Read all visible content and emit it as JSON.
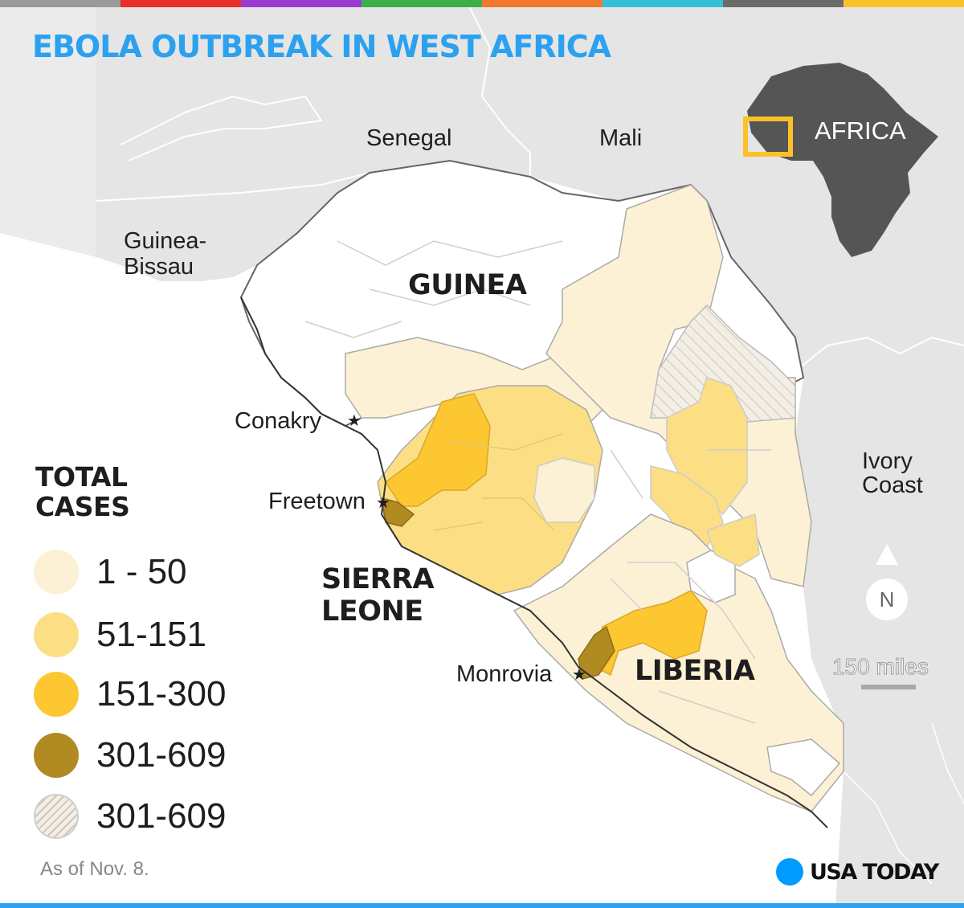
{
  "title": "EBOLA OUTBREAK IN WEST AFRICA",
  "stripe_colors": [
    "#9a9a9a",
    "#e8302a",
    "#9b3bd1",
    "#3fae49",
    "#f07830",
    "#36c0d8",
    "#6b6b6b",
    "#fbc12a"
  ],
  "labels": {
    "senegal": "Senegal",
    "mali": "Mali",
    "guinea_bissau_1": "Guinea-",
    "guinea_bissau_2": "Bissau",
    "ivory_coast_1": "Ivory",
    "ivory_coast_2": "Coast",
    "conakry": "Conakry",
    "freetown": "Freetown",
    "monrovia": "Monrovia",
    "africa": "AFRICA"
  },
  "countries": {
    "guinea": "GUINEA",
    "sierra_leone_1": "SIERRA",
    "sierra_leone_2": "LEONE",
    "liberia": "LIBERIA"
  },
  "legend": {
    "title_1": "TOTAL",
    "title_2": "CASES",
    "items": [
      {
        "label": "1 - 50",
        "color": "#fcf1d4"
      },
      {
        "label": "51-151",
        "color": "#fcde85"
      },
      {
        "label": "151-300",
        "color": "#fdc731"
      },
      {
        "label": "301-609",
        "color": "#b18a22"
      },
      {
        "label": "301-609",
        "color": "hatched"
      }
    ]
  },
  "scale": {
    "label": "150 miles"
  },
  "north": {
    "label": "N"
  },
  "as_of": "As of Nov. 8.",
  "brand": "USA TODAY"
}
